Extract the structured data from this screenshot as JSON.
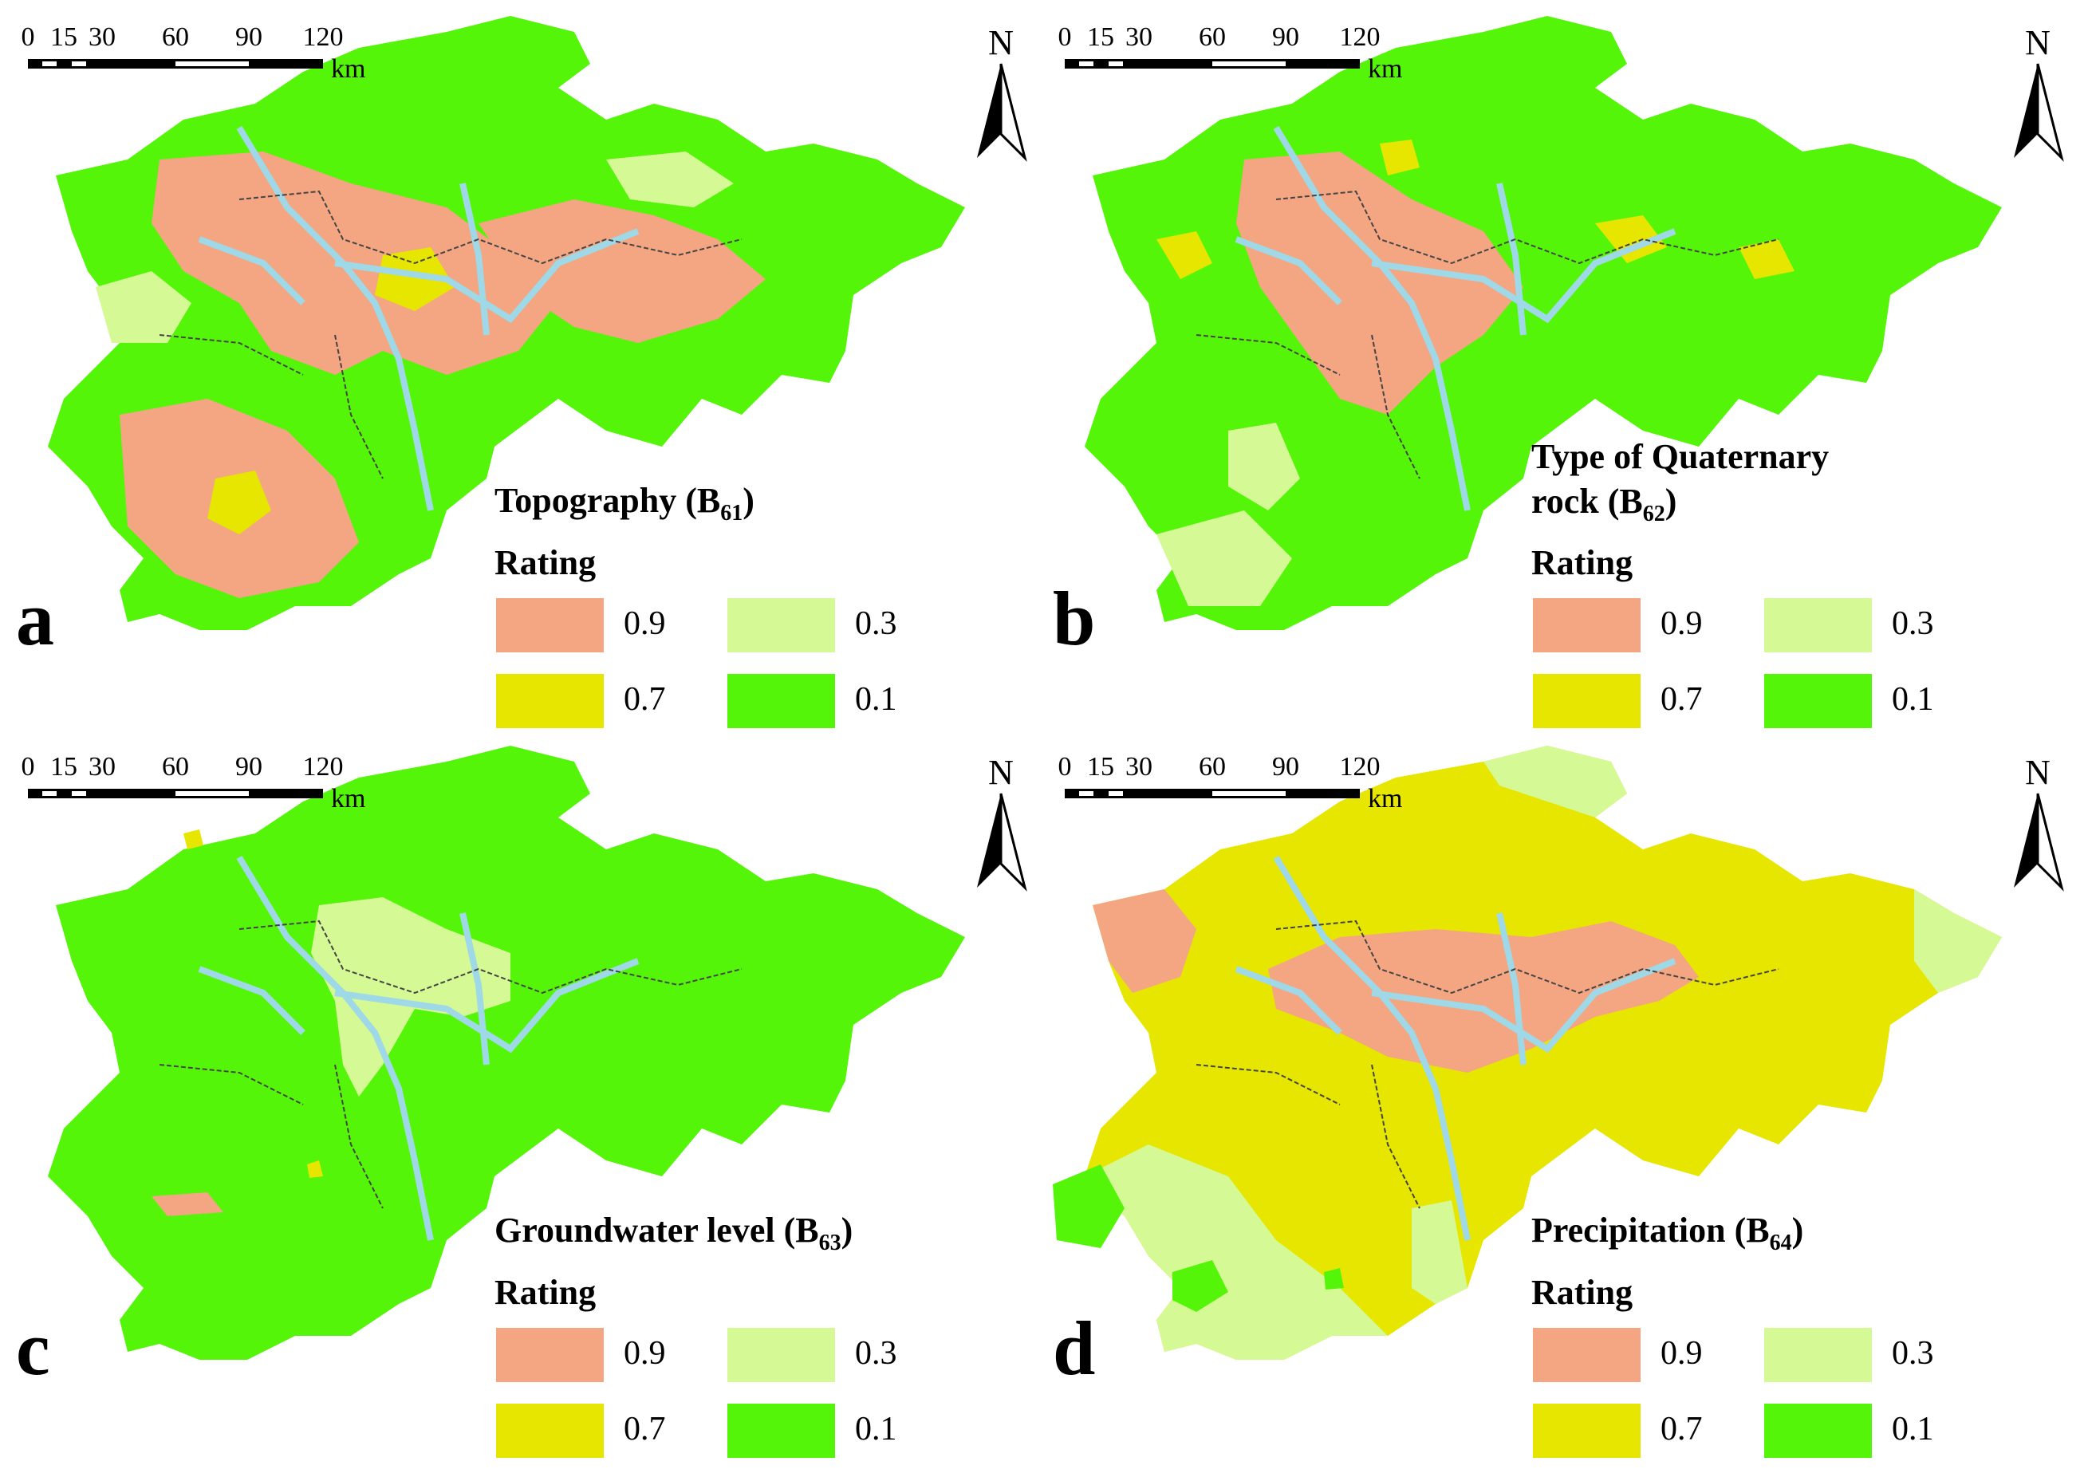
{
  "colors": {
    "r09": "#f4a582",
    "r07": "#e6e600",
    "r03": "#d4f995",
    "r01": "#55f50a",
    "water": "#9fd8e6",
    "boundary": "#444444"
  },
  "scalebar": {
    "ticks": [
      "0",
      "15",
      "30",
      "60",
      "90",
      "120"
    ],
    "unit": "km"
  },
  "north_label": "N",
  "legend_rating_label": "Rating",
  "legend_items": [
    {
      "value": "0.9",
      "color_key": "r09"
    },
    {
      "value": "0.3",
      "color_key": "r03"
    },
    {
      "value": "0.7",
      "color_key": "r07"
    },
    {
      "value": "0.1",
      "color_key": "r01"
    }
  ],
  "panels": [
    {
      "letter": "a",
      "title_line1": "Topography (B",
      "title_sub": "61",
      "title_tail": ")",
      "title_line2": "",
      "dominant": "r01",
      "patches": [
        "r09",
        "r03",
        "r07"
      ]
    },
    {
      "letter": "b",
      "title_line1": "Type of Quaternary",
      "title_sub": "62",
      "title_tail": ")",
      "title_line2": "rock (B",
      "dominant": "r01",
      "patches": [
        "r09",
        "r07",
        "r03"
      ]
    },
    {
      "letter": "c",
      "title_line1": "Groundwater level (B",
      "title_sub": "63",
      "title_tail": ")",
      "title_line2": "",
      "dominant": "r01",
      "patches": [
        "r03",
        "r07",
        "r09"
      ]
    },
    {
      "letter": "d",
      "title_line1": "Precipitation (B",
      "title_sub": "64",
      "title_tail": ")",
      "title_line2": "",
      "dominant": "r07",
      "patches": [
        "r09",
        "r03",
        "r01"
      ]
    }
  ]
}
